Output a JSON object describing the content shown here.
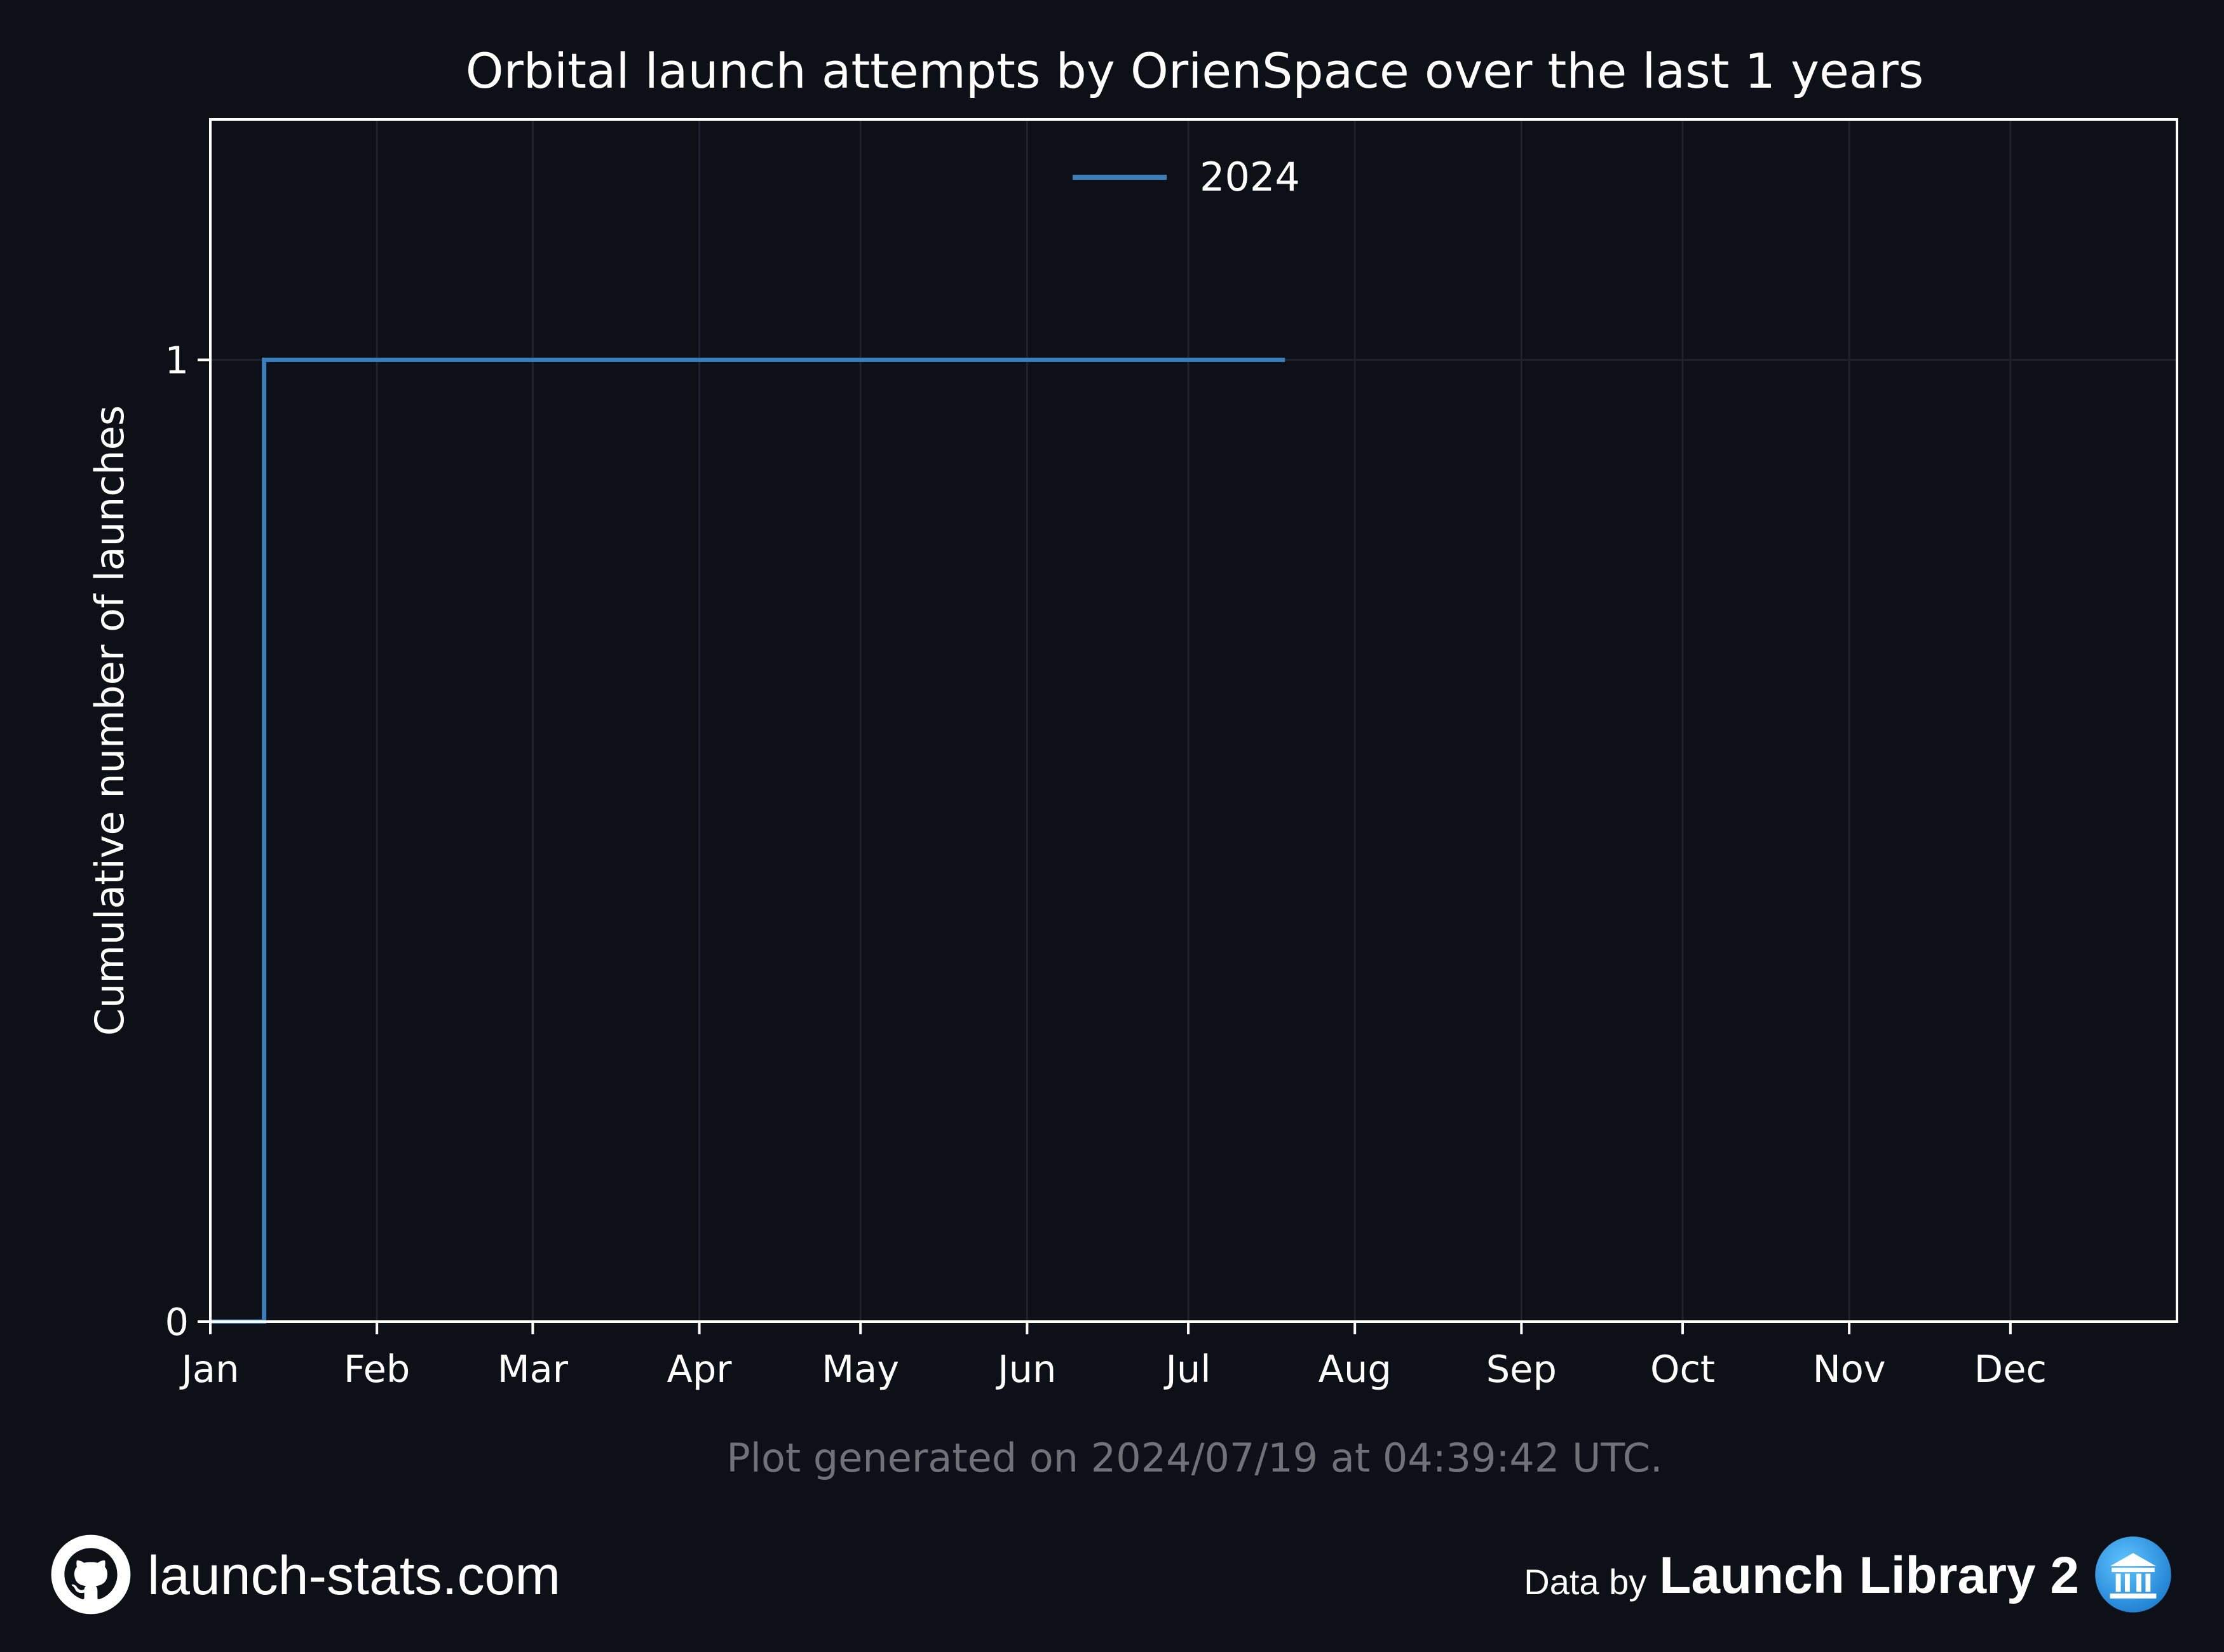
{
  "chart_data": {
    "type": "line",
    "step": true,
    "title": "Orbital launch attempts by OrienSpace over the last 1 years",
    "xlabel": "",
    "ylabel": "Cumulative number of launches",
    "x_ticks": [
      "Jan",
      "Feb",
      "Mar",
      "Apr",
      "May",
      "Jun",
      "Jul",
      "Aug",
      "Sep",
      "Oct",
      "Nov",
      "Dec"
    ],
    "x_domain": [
      "2024-01-01",
      "2024-12-31"
    ],
    "y_ticks": [
      0,
      1
    ],
    "ylim": [
      0,
      1.25
    ],
    "grid": true,
    "legend_position": "upper-center",
    "series": [
      {
        "name": "2024",
        "color": "#3a7fba",
        "points": [
          {
            "x": "2024-01-01",
            "y": 0
          },
          {
            "x": "2024-01-11",
            "y": 0
          },
          {
            "x": "2024-01-11",
            "y": 1
          },
          {
            "x": "2024-07-19",
            "y": 1
          }
        ]
      }
    ],
    "note": "Plot generated on 2024/07/19 at 04:39:42 UTC."
  },
  "colors": {
    "background": "#0d1017",
    "axes": "#ffffff",
    "grid": "#1e232b",
    "note": "#6f7378"
  },
  "footer": {
    "site_icon": "github-icon",
    "site_text": "launch-stats.com",
    "credit_prefix": "Data by",
    "credit_brand": "Launch Library 2",
    "credit_icon": "launch-library-logo-icon"
  }
}
